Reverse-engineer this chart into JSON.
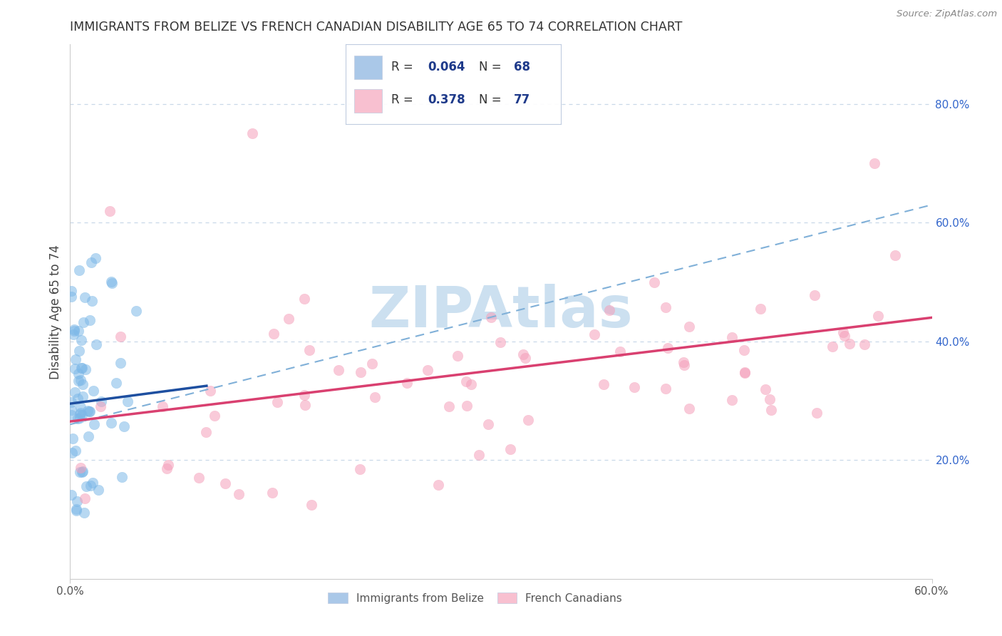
{
  "title": "IMMIGRANTS FROM BELIZE VS FRENCH CANADIAN DISABILITY AGE 65 TO 74 CORRELATION CHART",
  "source": "Source: ZipAtlas.com",
  "ylabel": "Disability Age 65 to 74",
  "xlim": [
    0.0,
    0.6
  ],
  "ylim": [
    0.0,
    0.9
  ],
  "xtick_positions": [
    0.0,
    0.6
  ],
  "xtick_labels": [
    "0.0%",
    "60.0%"
  ],
  "yticks_right": [
    0.2,
    0.4,
    0.6,
    0.8
  ],
  "ytick_right_labels": [
    "20.0%",
    "40.0%",
    "60.0%",
    "80.0%"
  ],
  "series1_R": 0.064,
  "series1_N": 68,
  "series2_R": 0.378,
  "series2_N": 77,
  "blue_scatter_color": "#7db8e8",
  "pink_scatter_color": "#f5a0ba",
  "blue_line_color": "#1e4fa0",
  "pink_line_color": "#d94070",
  "dash_line_color": "#80b0d8",
  "watermark_text": "ZIPAtlas",
  "watermark_color": "#cce0f0",
  "background_color": "#ffffff",
  "grid_color": "#c8d8e8",
  "legend_box_color": "#f0f5ff",
  "legend_border_color": "#c0cce0",
  "blue_legend_color": "#aac8e8",
  "pink_legend_color": "#f8c0d0",
  "legend_text_color": "#1e3a8a",
  "bottom_legend_blue": "#aac8e8",
  "bottom_legend_pink": "#f8c0d0",
  "title_color": "#333333",
  "source_color": "#888888",
  "axis_color": "#cccccc",
  "right_tick_color": "#3366cc"
}
